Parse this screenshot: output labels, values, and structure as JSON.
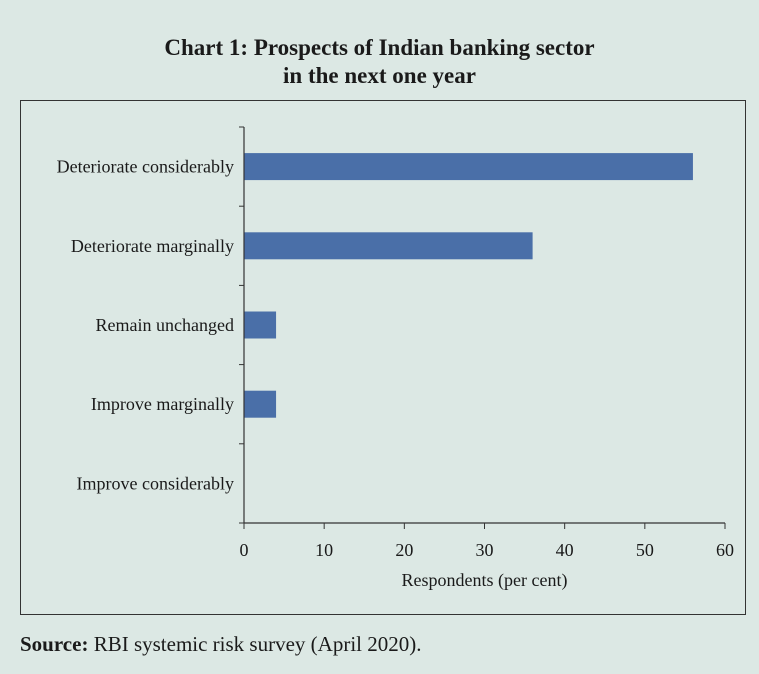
{
  "title_line1": "Chart 1: Prospects of Indian banking sector",
  "title_line2": "in the next one year",
  "source_label": "Source:",
  "source_text": "RBI systemic risk survey (April 2020).",
  "colors": {
    "bar": "#4a6fa8",
    "background": "#dce8e4"
  },
  "chart_data": {
    "type": "bar",
    "orientation": "horizontal",
    "categories": [
      "Deteriorate considerably",
      "Deteriorate marginally",
      "Remain unchanged",
      "Improve marginally",
      "Improve considerably"
    ],
    "values": [
      56,
      36,
      4,
      4,
      0
    ],
    "xlabel": "Respondents (per cent)",
    "ylabel": "",
    "xlim": [
      0,
      60
    ],
    "xticks": [
      0,
      10,
      20,
      30,
      40,
      50,
      60
    ],
    "grid": false
  }
}
